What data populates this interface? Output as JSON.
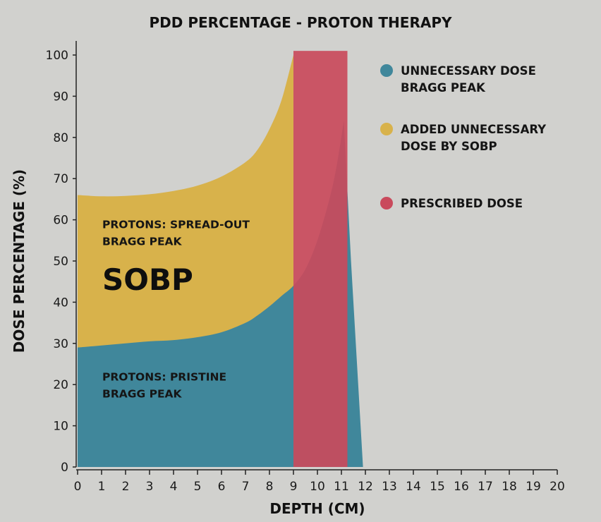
{
  "chart_data": {
    "type": "area",
    "title": "PDD PERCENTAGE - PROTON THERAPY",
    "xlabel": "DEPTH (CM)",
    "ylabel": "DOSE PERCENTAGE (%)",
    "xlim": [
      0,
      20
    ],
    "ylim": [
      0,
      100
    ],
    "x_ticks": [
      0,
      1,
      2,
      3,
      4,
      5,
      6,
      7,
      8,
      9,
      10,
      11,
      12,
      13,
      14,
      15,
      16,
      17,
      18,
      19,
      20
    ],
    "y_ticks": [
      0,
      10,
      20,
      30,
      40,
      50,
      60,
      70,
      80,
      90,
      100
    ],
    "grid": false,
    "legend_position": "top-right",
    "series": [
      {
        "name": "ADDED UNNECESSARY DOSE BY SOBP",
        "color": "#d8b24b",
        "x": [
          0,
          1,
          2,
          3,
          4,
          5,
          6,
          7,
          7.5,
          8,
          8.5,
          9
        ],
        "y": [
          66,
          65.7,
          65.8,
          66.2,
          67,
          68.3,
          70.5,
          74,
          77,
          82,
          89,
          100
        ]
      },
      {
        "name": "UNNECESSARY DOSE BRAGG PEAK",
        "color": "#40879b",
        "x": [
          0,
          1,
          2,
          3,
          4,
          5,
          6,
          7,
          7.5,
          8,
          8.5,
          9,
          9.5,
          10,
          10.5,
          10.8,
          11.1,
          11.4,
          11.9
        ],
        "y": [
          29,
          29.5,
          30,
          30.5,
          30.8,
          31.5,
          32.7,
          35,
          36.8,
          39,
          41.5,
          44,
          48,
          55,
          65,
          73,
          84,
          50,
          0
        ]
      },
      {
        "name": "PRESCRIBED DOSE",
        "color": "#c94a5c",
        "x": [
          9,
          11.25
        ],
        "y": [
          101,
          101
        ]
      }
    ],
    "annotations": [
      {
        "text_lines": [
          "PROTONS: SPREAD-OUT",
          "BRAGG PEAK"
        ],
        "x": 1,
        "y": 58
      },
      {
        "text_lines": [
          "SOBP"
        ],
        "x": 1,
        "y": 43,
        "size": "large"
      },
      {
        "text_lines": [
          "PROTONS: PRISTINE",
          "BRAGG PEAK"
        ],
        "x": 1,
        "y": 21
      }
    ],
    "legend": [
      {
        "lines": [
          "UNNECESSARY DOSE",
          "BRAGG PEAK"
        ],
        "color": "#40879b"
      },
      {
        "lines": [
          "ADDED UNNECESSARY",
          "DOSE BY SOBP"
        ],
        "color": "#d8b24b"
      },
      {
        "lines": [
          "PRESCRIBED DOSE"
        ],
        "color": "#c94a5c"
      }
    ]
  }
}
